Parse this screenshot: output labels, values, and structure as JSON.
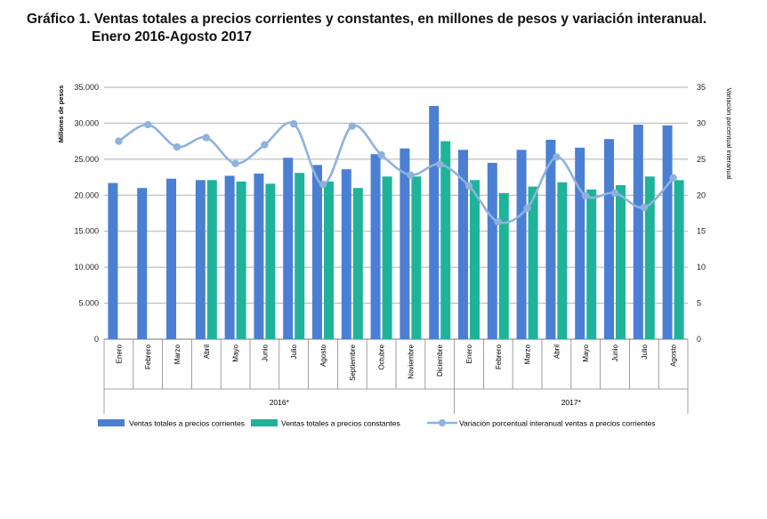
{
  "title_line1": "Gráfico 1. Ventas totales a precios corrientes y constantes, en millones de pesos y variación interanual.",
  "title_line2": "Enero 2016-Agosto 2017",
  "chart_data": {
    "type": "bar",
    "categories": [
      "Enero",
      "Febrero",
      "Marzo",
      "Abril",
      "Mayo",
      "Junio",
      "Julio",
      "Agosto",
      "Septiembre",
      "Octubre",
      "Noviembre",
      "Diciembre",
      "Enero",
      "Febrero",
      "Marzo",
      "Abril",
      "Mayo",
      "Junio",
      "Julio",
      "Agosto"
    ],
    "groups": [
      {
        "label": "2016*",
        "count": 12
      },
      {
        "label": "2017*",
        "count": 8
      }
    ],
    "ylabel": "Millones de pesos",
    "y2label": "Variación porcentual interanual",
    "ylim": [
      0,
      35000
    ],
    "y2lim": [
      0,
      35
    ],
    "yticks": [
      "0",
      "5.000",
      "10.000",
      "15.000",
      "20.000",
      "25.000",
      "30.000",
      "35.000"
    ],
    "y2ticks": [
      "0",
      "5",
      "10",
      "15",
      "20",
      "25",
      "30",
      "35"
    ],
    "grid": true,
    "legend_position": "bottom",
    "series": [
      {
        "name": "Ventas totales  a precios corrientes",
        "kind": "bar",
        "color": "#4a7fd4",
        "values": [
          21700,
          21000,
          22300,
          22100,
          22700,
          23000,
          25200,
          24200,
          23600,
          25700,
          26500,
          32400,
          26300,
          24500,
          26300,
          27700,
          26600,
          27800,
          29800,
          29700
        ]
      },
      {
        "name": "Ventas totales  a precios constantes",
        "kind": "bar",
        "color": "#1fb39a",
        "values": [
          null,
          null,
          null,
          22100,
          21900,
          21600,
          23100,
          21900,
          21000,
          22600,
          22600,
          27500,
          22100,
          20300,
          21200,
          21800,
          20800,
          21400,
          22600,
          22100
        ]
      },
      {
        "name": "Variación porcentual interanual ventas a precios corrientes",
        "kind": "line",
        "axis": "right",
        "color": "#8fb2dd",
        "values": [
          27.5,
          29.8,
          26.7,
          28.0,
          24.4,
          27.0,
          29.9,
          21.5,
          29.6,
          25.6,
          22.8,
          24.3,
          21.3,
          16.3,
          18.2,
          25.3,
          19.9,
          20.3,
          18.3,
          22.4
        ]
      }
    ]
  }
}
